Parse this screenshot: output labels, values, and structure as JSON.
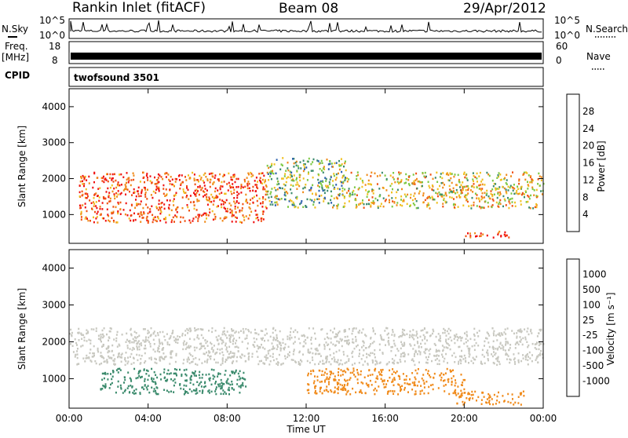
{
  "header": {
    "title": "Rankin Inlet (fitACF)",
    "beam": "Beam 08",
    "date": "29/Apr/2012"
  },
  "panels": {
    "nsky": {
      "label": "N.Sky",
      "right_label": "N.Search",
      "left_ticks": [
        "10^5",
        "10^0"
      ],
      "right_ticks": [
        "10^5",
        "10^0"
      ]
    },
    "freq": {
      "label_top": "Freq.",
      "label_unit": "[MHz]",
      "right_label": "Nave",
      "left_ticks": [
        "18",
        "8"
      ],
      "right_ticks": [
        "60",
        "0"
      ]
    },
    "cpid": {
      "label": "CPID",
      "value": "twofsound 3501"
    }
  },
  "chart_data": [
    {
      "type": "heatmap",
      "title": "",
      "xlabel": "",
      "ylabel": "Slant Range [km]",
      "xlim": [
        "00:00",
        "24:00"
      ],
      "ylim": [
        200,
        4500
      ],
      "x_ticks": [
        "00:00",
        "04:00",
        "08:00",
        "12:00",
        "16:00",
        "20:00",
        "00:00"
      ],
      "y_ticks": [
        1000,
        2000,
        3000,
        4000
      ],
      "colorbar": {
        "label": "Power [dB]",
        "ticks": [
          "4",
          "8",
          "12",
          "16",
          "20",
          "24",
          "28"
        ],
        "colors": [
          "#0a2cf0",
          "#2a5fae",
          "#3a8a6c",
          "#7cc843",
          "#f0c020",
          "#f08a1a",
          "#f05010",
          "#f01010"
        ]
      },
      "features": [
        {
          "time_start": 0.5,
          "time_end": 10,
          "range_low": 800,
          "range_high": 2200,
          "value_db": 26
        },
        {
          "time_start": 10,
          "time_end": 14,
          "range_low": 1200,
          "range_high": 2600,
          "value_db": 14
        },
        {
          "time_start": 14,
          "time_end": 24,
          "range_low": 1200,
          "range_high": 2200,
          "value_db": 18
        },
        {
          "time_start": 20,
          "time_end": 22.5,
          "range_low": 380,
          "range_high": 560,
          "value_db": 28
        }
      ]
    },
    {
      "type": "heatmap",
      "title": "",
      "xlabel": "Time UT",
      "ylabel": "Slant Range [km]",
      "xlim": [
        "00:00",
        "24:00"
      ],
      "ylim": [
        200,
        4500
      ],
      "x_ticks": [
        "00:00",
        "04:00",
        "08:00",
        "12:00",
        "16:00",
        "20:00",
        "00:00"
      ],
      "y_ticks": [
        1000,
        2000,
        3000,
        4000
      ],
      "colorbar": {
        "label": "Velocity [m s⁻¹]",
        "ticks": [
          "1000",
          "500",
          "100",
          "25",
          "-25",
          "-100",
          "-500",
          "-1000"
        ],
        "colors": [
          "#2a3fc8",
          "#2f7a9c",
          "#3a8a6c",
          "#7cc843",
          "#c8c8c0",
          "#f0c020",
          "#f08a1a",
          "#f05010",
          "#f01010"
        ]
      },
      "features": [
        {
          "time_start": 0,
          "time_end": 24,
          "range_low": 1400,
          "range_high": 2400,
          "velocity": 0
        },
        {
          "time_start": 1.5,
          "time_end": 9,
          "range_low": 600,
          "range_high": 1300,
          "velocity": 150
        },
        {
          "time_start": 12,
          "time_end": 20,
          "range_low": 600,
          "range_high": 1300,
          "velocity": -300
        },
        {
          "time_start": 19.5,
          "time_end": 23,
          "range_low": 320,
          "range_high": 680,
          "velocity": -200
        }
      ]
    }
  ]
}
